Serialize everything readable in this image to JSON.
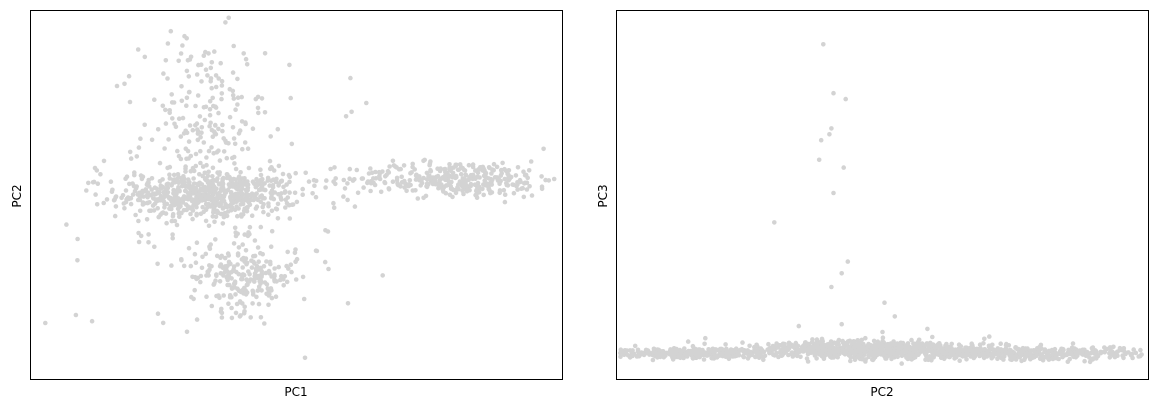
{
  "chart_data": [
    {
      "type": "scatter",
      "title": "",
      "xlabel": "PC1",
      "ylabel": "PC2",
      "xlim": [
        -5.2,
        20.8
      ],
      "ylim": [
        -11.5,
        11.5
      ],
      "point_color": "#d3d3d3",
      "grid": false,
      "ticks": false,
      "clusters": [
        {
          "cx": 3.5,
          "cy": 0.0,
          "sx": 2.2,
          "sy": 0.7,
          "n": 600
        },
        {
          "cx": 3.2,
          "cy": 3.8,
          "sx": 1.5,
          "sy": 3.2,
          "n": 230
        },
        {
          "cx": 15.6,
          "cy": 1.0,
          "sx": 2.6,
          "sy": 0.55,
          "n": 360
        },
        {
          "cx": 5.2,
          "cy": -5.1,
          "sx": 1.3,
          "sy": 1.1,
          "n": 230
        },
        {
          "cx": 4.0,
          "cy": 0.0,
          "sx": 4.5,
          "sy": 4.5,
          "n": 90
        }
      ],
      "outliers": [
        [
          -3.0,
          -7.5
        ],
        [
          -4.5,
          -8.0
        ],
        [
          10.5,
          5.2
        ],
        [
          8.8,
          -3.5
        ],
        [
          1.0,
          -4.3
        ]
      ]
    },
    {
      "type": "scatter",
      "title": "",
      "xlabel": "PC2",
      "ylabel": "PC3",
      "xlim": [
        -12.5,
        13.5
      ],
      "ylim": [
        -6.0,
        88.0
      ],
      "point_color": "#d3d3d3",
      "grid": false,
      "ticks": false,
      "clusters": [
        {
          "cx": -9.0,
          "cy": 0.5,
          "sx": 2.2,
          "sy": 0.7,
          "n": 350
        },
        {
          "cx": 0.0,
          "cy": 1.5,
          "sx": 3.0,
          "sy": 1.1,
          "n": 750
        },
        {
          "cx": 7.5,
          "cy": 0.5,
          "sx": 3.0,
          "sy": 0.8,
          "n": 450
        }
      ],
      "outliers": [
        [
          -2.4,
          79.5
        ],
        [
          -1.9,
          67.0
        ],
        [
          -1.3,
          65.5
        ],
        [
          -2.0,
          58.0
        ],
        [
          -2.1,
          56.5
        ],
        [
          -2.5,
          55.0
        ],
        [
          -2.6,
          50.0
        ],
        [
          -1.4,
          48.0
        ],
        [
          -1.9,
          41.5
        ],
        [
          -4.8,
          34.0
        ],
        [
          -1.2,
          24.0
        ],
        [
          -1.5,
          21.0
        ],
        [
          -2.0,
          17.5
        ],
        [
          0.6,
          13.5
        ],
        [
          -3.6,
          7.5
        ],
        [
          -1.5,
          8.0
        ],
        [
          0.5,
          6.0
        ],
        [
          2.7,
          6.8
        ],
        [
          1.1,
          10.0
        ],
        [
          12.8,
          1.5
        ]
      ]
    }
  ]
}
